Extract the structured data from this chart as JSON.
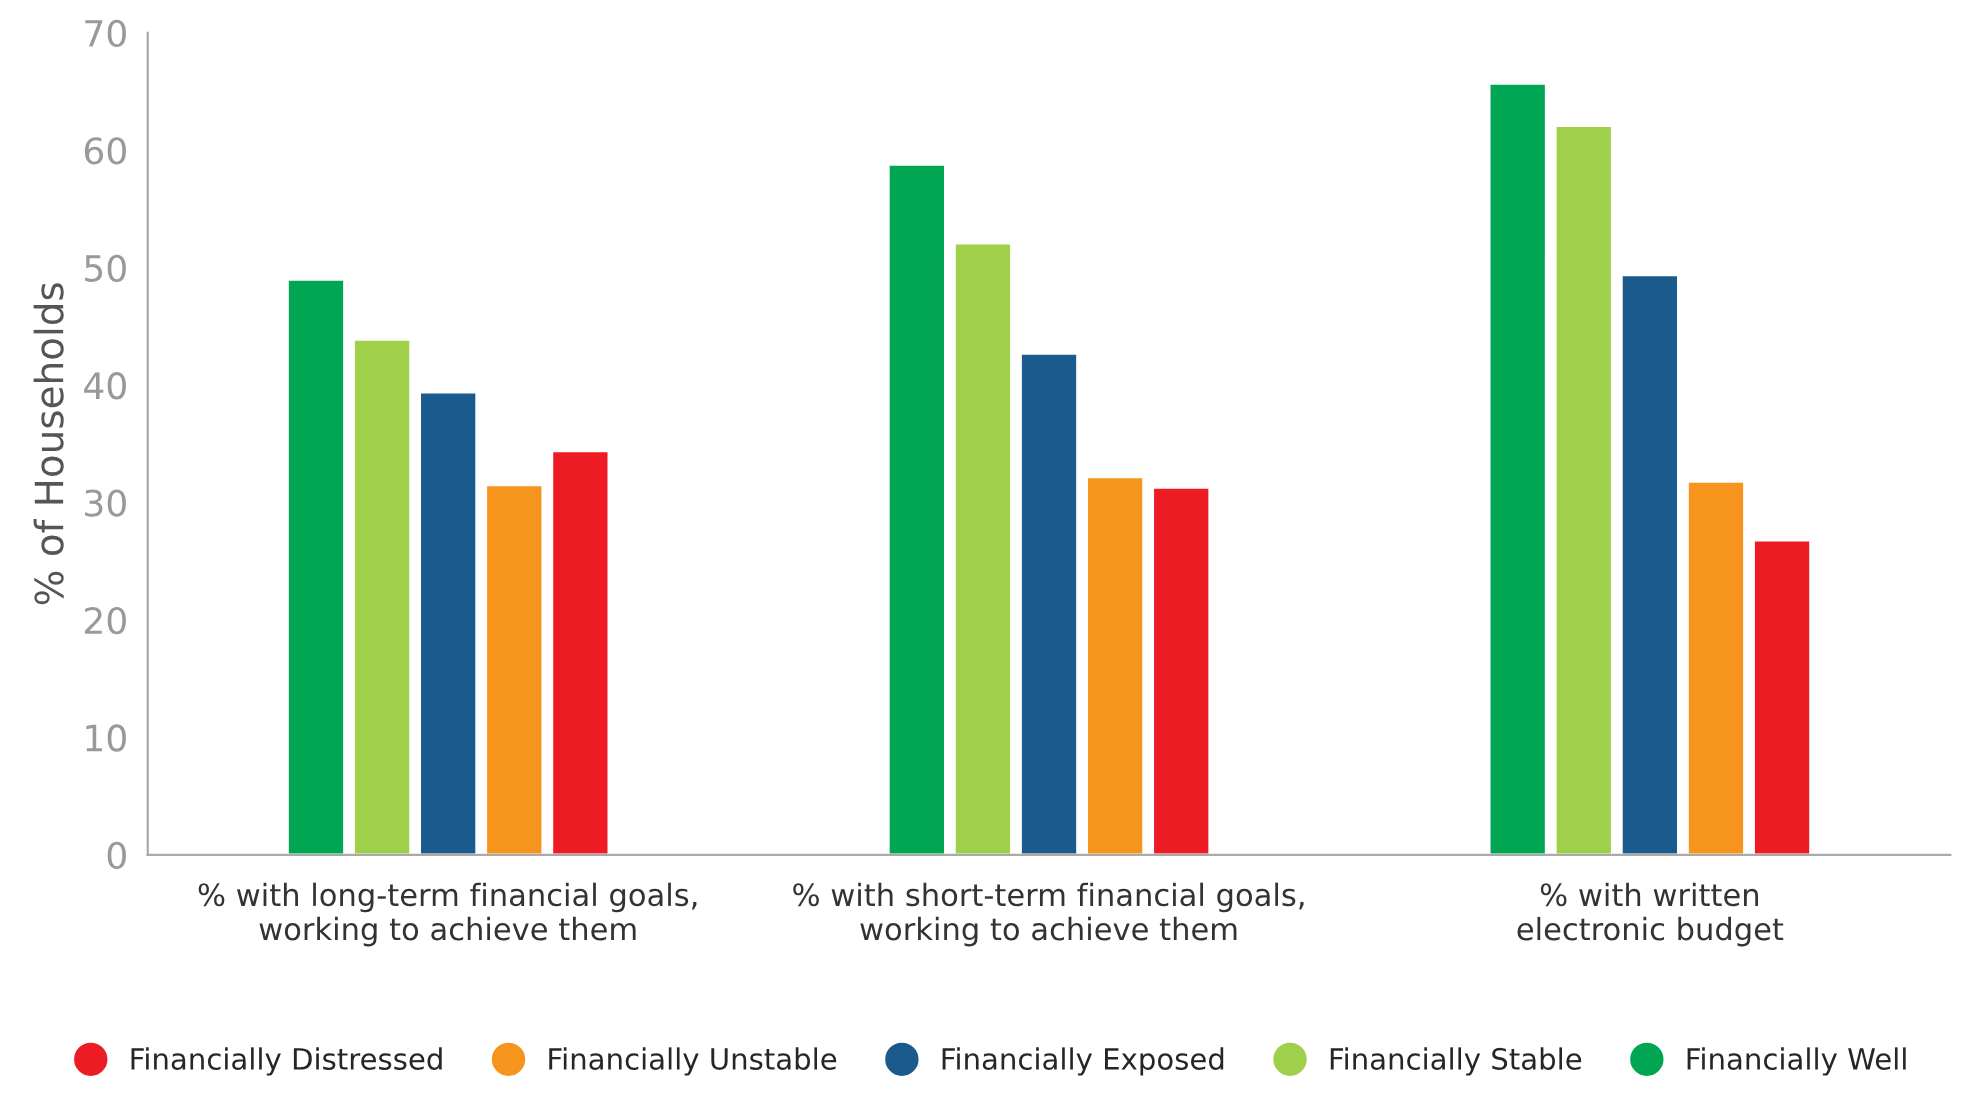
{
  "chart_data": {
    "type": "bar",
    "ylabel": "% of Households",
    "categories": [
      "% with long-term financial goals,\nworking to achieve them",
      "% with short-term financial goals,\nworking to achieve them",
      "% with written\nelectronic budget"
    ],
    "series": [
      {
        "name": "Financially Well",
        "color": "#00a651",
        "values": [
          49.0,
          58.8,
          65.7
        ]
      },
      {
        "name": "Financially Stable",
        "color": "#9ed04a",
        "values": [
          43.9,
          52.1,
          62.1
        ]
      },
      {
        "name": "Financially Exposed",
        "color": "#1b5a8c",
        "values": [
          39.4,
          42.7,
          49.4
        ]
      },
      {
        "name": "Financially Unstable",
        "color": "#f7941d",
        "values": [
          31.5,
          32.2,
          31.8
        ]
      },
      {
        "name": "Financially Distressed",
        "color": "#ed1c24",
        "values": [
          34.4,
          31.3,
          26.8
        ]
      }
    ],
    "ylim": [
      0,
      70
    ],
    "yticks": [
      0,
      10,
      20,
      30,
      40,
      50,
      60,
      70
    ],
    "grid": false,
    "legend": "bottom"
  }
}
